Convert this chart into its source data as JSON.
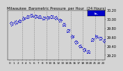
{
  "title": "Milwaukee  Barometric Pressure  per Hour  (24 Hours)",
  "bg_color": "#d4d4d4",
  "plot_bg": "#d4d4d4",
  "dot_color": "#0000cc",
  "legend_color": "#0000cc",
  "x_hours": [
    0,
    1,
    2,
    3,
    4,
    5,
    6,
    7,
    8,
    9,
    10,
    11,
    12,
    13,
    14,
    15,
    16,
    17,
    18,
    19,
    20,
    21,
    22,
    23
  ],
  "y_values": [
    29.91,
    29.93,
    29.96,
    30.02,
    30.06,
    30.08,
    30.07,
    30.05,
    30.03,
    30.04,
    30.06,
    30.03,
    29.98,
    29.88,
    29.75,
    29.62,
    29.5,
    29.4,
    29.33,
    29.28,
    29.55,
    29.62,
    29.58,
    29.52
  ],
  "y_scatter_offsets": [
    [
      0.0,
      -0.03,
      0.02,
      -0.05,
      0.03,
      -0.02,
      0.01,
      -0.04,
      0.02,
      -0.01
    ],
    [
      0.0,
      -0.02,
      0.03,
      -0.04,
      0.02,
      -0.01,
      0.04,
      -0.03,
      0.01,
      -0.02
    ],
    [
      0.0,
      -0.01,
      0.02,
      -0.03,
      0.04,
      -0.02,
      0.01,
      -0.03,
      0.02,
      -0.01
    ],
    [
      0.0,
      -0.02,
      0.03,
      -0.04,
      0.02,
      -0.01,
      0.01,
      -0.03,
      0.02,
      -0.01
    ],
    [
      0.0,
      -0.03,
      0.02,
      -0.04,
      0.03,
      -0.02,
      0.01,
      -0.03,
      0.02,
      -0.01
    ],
    [
      0.0,
      -0.02,
      0.03,
      -0.03,
      0.02,
      -0.01,
      0.04,
      -0.02,
      0.01,
      -0.02
    ],
    [
      0.0,
      -0.03,
      0.02,
      -0.04,
      0.03,
      -0.01,
      0.01,
      -0.03,
      0.02,
      -0.01
    ],
    [
      0.0,
      -0.02,
      0.03,
      -0.03,
      0.02,
      -0.01,
      0.04,
      -0.02,
      0.01,
      -0.03
    ],
    [
      0.0,
      -0.03,
      0.02,
      -0.04,
      0.03,
      -0.02,
      0.01,
      -0.03,
      0.02,
      -0.01
    ],
    [
      0.0,
      -0.02,
      0.03,
      -0.04,
      0.02,
      -0.01,
      0.01,
      -0.03,
      0.02,
      -0.01
    ],
    [
      0.0,
      -0.03,
      0.02,
      -0.04,
      0.03,
      -0.02,
      0.01,
      -0.03,
      0.02,
      -0.01
    ],
    [
      0.0,
      -0.02,
      0.03,
      -0.03,
      0.02,
      -0.01,
      0.04,
      -0.02,
      0.01,
      -0.02
    ],
    [
      0.0,
      -0.03,
      0.02,
      -0.04,
      0.03,
      -0.01,
      0.01,
      -0.03,
      0.02,
      -0.01
    ],
    [
      0.0,
      -0.02,
      0.03,
      -0.03,
      0.02,
      -0.01,
      0.04,
      -0.02,
      0.01,
      -0.03
    ],
    [
      0.0,
      -0.03,
      0.02,
      -0.04,
      0.03,
      -0.02,
      0.01,
      -0.03,
      0.02,
      -0.01
    ],
    [
      0.0,
      -0.02,
      0.03,
      -0.04,
      0.02,
      -0.01,
      0.01,
      -0.03,
      0.02,
      -0.01
    ],
    [
      0.0,
      -0.03,
      0.02,
      -0.04,
      0.03,
      -0.02,
      0.01,
      -0.03,
      0.02,
      -0.01
    ],
    [
      0.0,
      -0.02,
      0.03,
      -0.03,
      0.02,
      -0.01,
      0.04,
      -0.02,
      0.01,
      -0.02
    ],
    [
      0.0,
      -0.03,
      0.02,
      -0.04,
      0.03,
      -0.01,
      0.01,
      -0.03,
      0.02,
      -0.01
    ],
    [
      0.0,
      -0.02,
      0.03,
      -0.03,
      0.02,
      -0.01,
      0.04,
      -0.02,
      0.01,
      -0.03
    ],
    [
      0.0,
      -0.03,
      0.02,
      -0.04,
      0.03,
      -0.02,
      0.01,
      -0.03,
      0.02,
      -0.01
    ],
    [
      0.0,
      -0.02,
      0.03,
      -0.04,
      0.02,
      -0.01,
      0.01,
      -0.03,
      0.02,
      -0.01
    ],
    [
      0.0,
      -0.03,
      0.02,
      -0.04,
      0.03,
      -0.02,
      0.01,
      -0.03,
      0.02,
      -0.01
    ],
    [
      0.0,
      -0.02,
      0.03,
      -0.03,
      0.02,
      -0.01,
      0.04,
      -0.02,
      0.01,
      -0.02
    ]
  ],
  "ylim": [
    29.1,
    30.2
  ],
  "yticks": [
    29.2,
    29.4,
    29.6,
    29.8,
    30.0,
    30.2
  ],
  "ytick_labels": [
    "29.20",
    "29.40",
    "29.60",
    "29.80",
    "30.00",
    "30.20"
  ],
  "ylabel_fontsize": 3.5,
  "title_fontsize": 3.8,
  "xlabel_fontsize": 3.0,
  "grid_color": "#888888",
  "vlines": [
    3,
    6,
    9,
    12,
    15,
    18,
    21
  ],
  "marker_size": 0.8,
  "legend_label": "In.",
  "legend_label2": "30.08",
  "fig_width": 1.6,
  "fig_height": 0.87
}
